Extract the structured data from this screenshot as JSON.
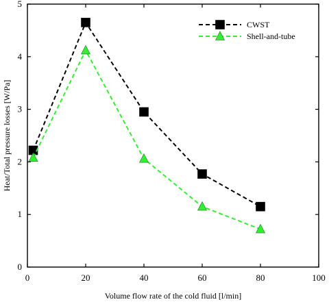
{
  "chart_data": {
    "type": "line",
    "title": "",
    "xlabel": "Volume flow rate of the cold fluid [l/min]",
    "ylabel": "Heat/Total pressure losses [W/Pa]",
    "xlim": [
      0,
      100
    ],
    "ylim": [
      0,
      5
    ],
    "xticks": [
      "0",
      "20",
      "40",
      "60",
      "80",
      "100"
    ],
    "yticks": [
      "0",
      "1",
      "2",
      "3",
      "4",
      "5"
    ],
    "grid": false,
    "legend_position": "top-right",
    "series": [
      {
        "name": "CWST",
        "marker": "square",
        "line_style": "dashed",
        "color": "#000000",
        "x": [
          2,
          20,
          40,
          60,
          80
        ],
        "y": [
          2.22,
          4.65,
          2.95,
          1.77,
          1.15
        ]
      },
      {
        "name": "Shell-and-tube",
        "marker": "triangle",
        "line_style": "dashed",
        "color": "#33ee33",
        "x": [
          2,
          20,
          40,
          60,
          80
        ],
        "y": [
          2.08,
          4.12,
          2.06,
          1.15,
          0.72
        ]
      }
    ]
  }
}
